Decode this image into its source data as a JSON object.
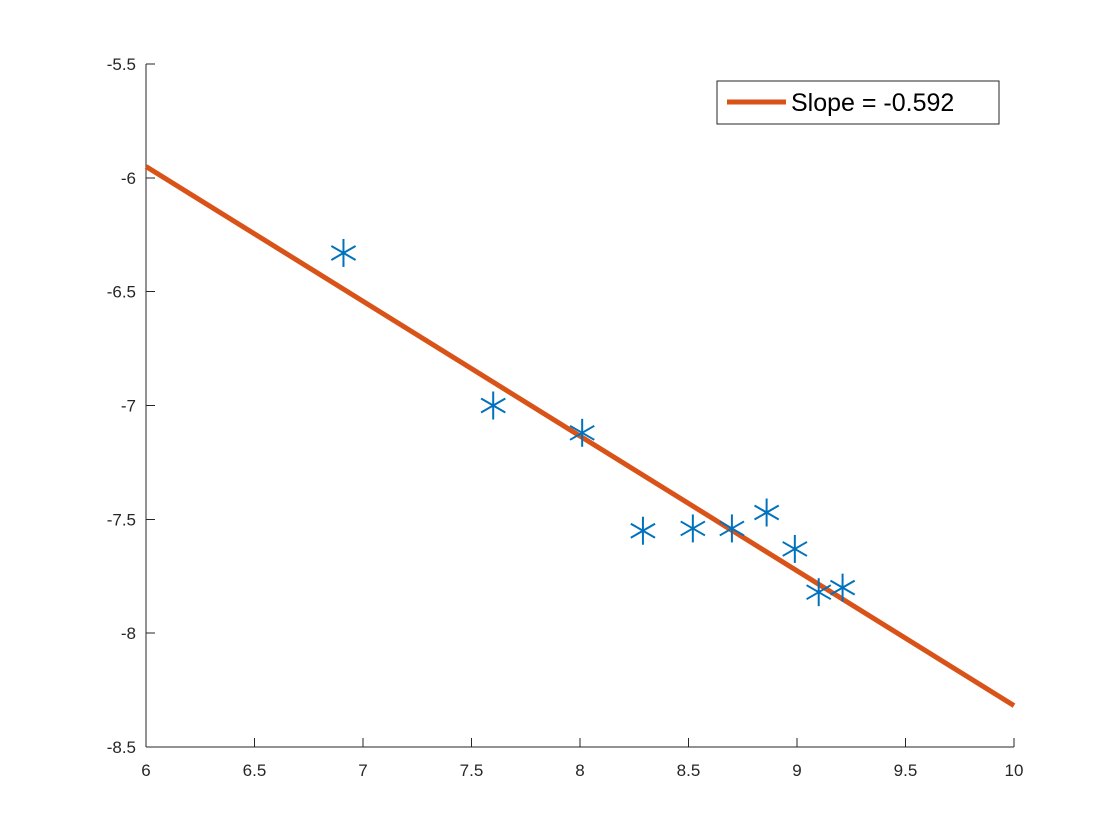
{
  "chart_data": {
    "type": "scatter",
    "title": "",
    "xlabel": "",
    "ylabel": "",
    "xlim": [
      6,
      10
    ],
    "ylim": [
      -8.5,
      -5.5
    ],
    "x_ticks": [
      6,
      6.5,
      7,
      7.5,
      8,
      8.5,
      9,
      9.5,
      10
    ],
    "y_ticks": [
      -5.5,
      -6,
      -6.5,
      -7,
      -7.5,
      -8,
      -8.5
    ],
    "x_tick_labels": [
      "6",
      "6.5",
      "7",
      "7.5",
      "8",
      "8.5",
      "9",
      "9.5",
      "10"
    ],
    "y_tick_labels": [
      "-5.5",
      "-6",
      "-6.5",
      "-7",
      "-7.5",
      "-8",
      "-8.5"
    ],
    "grid": false,
    "legend_position": "top-right",
    "series": [
      {
        "marker": "asterisk",
        "color": "#0072BD",
        "points": [
          {
            "x": 6.91,
            "y": -6.33
          },
          {
            "x": 7.6,
            "y": -7.0
          },
          {
            "x": 8.01,
            "y": -7.12
          },
          {
            "x": 8.29,
            "y": -7.55
          },
          {
            "x": 8.52,
            "y": -7.54
          },
          {
            "x": 8.7,
            "y": -7.54
          },
          {
            "x": 8.86,
            "y": -7.47
          },
          {
            "x": 8.99,
            "y": -7.63
          },
          {
            "x": 9.1,
            "y": -7.82
          },
          {
            "x": 9.21,
            "y": -7.8
          }
        ]
      },
      {
        "name": "Slope = -0.592",
        "type": "line",
        "color": "#D95319",
        "points": [
          {
            "x": 6,
            "y": -5.95
          },
          {
            "x": 10,
            "y": -8.318
          }
        ]
      }
    ]
  }
}
